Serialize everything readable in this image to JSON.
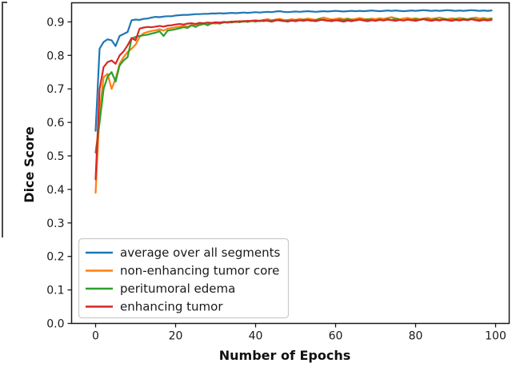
{
  "figure_caption": "",
  "axes": {
    "x_title": "Number of Epochs",
    "y_title": "Dice Score"
  },
  "chart_data": {
    "type": "line",
    "title": "",
    "xlabel": "Number of Epochs",
    "ylabel": "Dice Score",
    "x_start": 0,
    "x_step": 1,
    "n_points": 100,
    "xlim": [
      -6,
      103.4
    ],
    "ylim": [
      0.0,
      0.957
    ],
    "x_ticks": [
      0,
      20,
      40,
      60,
      80,
      100
    ],
    "y_ticks": [
      0.0,
      0.1,
      0.2,
      0.3,
      0.4,
      0.5,
      0.6,
      0.7,
      0.8,
      0.9
    ],
    "grid": false,
    "legend_position": "lower-left",
    "frame_color": "#1a1a1a",
    "legend_border_color": "#cccccc",
    "series": [
      {
        "name": "average over all segments",
        "color": "#1f77b4",
        "values": [
          0.575,
          0.82,
          0.84,
          0.848,
          0.845,
          0.828,
          0.858,
          0.864,
          0.87,
          0.905,
          0.907,
          0.906,
          0.909,
          0.91,
          0.913,
          0.915,
          0.914,
          0.916,
          0.917,
          0.917,
          0.919,
          0.92,
          0.921,
          0.921,
          0.922,
          0.923,
          0.923,
          0.924,
          0.924,
          0.925,
          0.925,
          0.926,
          0.925,
          0.926,
          0.927,
          0.926,
          0.927,
          0.928,
          0.927,
          0.928,
          0.929,
          0.928,
          0.929,
          0.93,
          0.929,
          0.931,
          0.932,
          0.93,
          0.929,
          0.93,
          0.931,
          0.93,
          0.931,
          0.932,
          0.931,
          0.93,
          0.931,
          0.932,
          0.931,
          0.932,
          0.933,
          0.932,
          0.931,
          0.932,
          0.933,
          0.932,
          0.933,
          0.932,
          0.933,
          0.934,
          0.933,
          0.932,
          0.933,
          0.934,
          0.933,
          0.934,
          0.933,
          0.932,
          0.933,
          0.934,
          0.933,
          0.934,
          0.935,
          0.934,
          0.933,
          0.934,
          0.933,
          0.934,
          0.935,
          0.934,
          0.933,
          0.934,
          0.933,
          0.934,
          0.935,
          0.934,
          0.933,
          0.934,
          0.933,
          0.934
        ]
      },
      {
        "name": "non-enhancing tumor core",
        "color": "#ff7f0e",
        "values": [
          0.39,
          0.63,
          0.735,
          0.745,
          0.7,
          0.73,
          0.775,
          0.795,
          0.81,
          0.82,
          0.832,
          0.855,
          0.866,
          0.87,
          0.873,
          0.875,
          0.878,
          0.874,
          0.88,
          0.882,
          0.884,
          0.886,
          0.888,
          0.886,
          0.89,
          0.892,
          0.89,
          0.893,
          0.894,
          0.896,
          0.895,
          0.897,
          0.899,
          0.897,
          0.9,
          0.902,
          0.9,
          0.903,
          0.901,
          0.904,
          0.905,
          0.903,
          0.906,
          0.908,
          0.905,
          0.907,
          0.909,
          0.906,
          0.905,
          0.908,
          0.906,
          0.909,
          0.907,
          0.91,
          0.908,
          0.906,
          0.91,
          0.913,
          0.91,
          0.907,
          0.909,
          0.911,
          0.908,
          0.91,
          0.907,
          0.909,
          0.912,
          0.909,
          0.907,
          0.91,
          0.908,
          0.911,
          0.909,
          0.912,
          0.914,
          0.911,
          0.908,
          0.91,
          0.912,
          0.909,
          0.911,
          0.908,
          0.91,
          0.912,
          0.909,
          0.911,
          0.913,
          0.91,
          0.908,
          0.911,
          0.909,
          0.912,
          0.91,
          0.908,
          0.911,
          0.913,
          0.91,
          0.912,
          0.909,
          0.911
        ]
      },
      {
        "name": "peritumoral edema",
        "color": "#2ca02c",
        "values": [
          0.51,
          0.6,
          0.7,
          0.737,
          0.75,
          0.722,
          0.77,
          0.785,
          0.795,
          0.85,
          0.855,
          0.858,
          0.86,
          0.862,
          0.865,
          0.868,
          0.872,
          0.858,
          0.874,
          0.876,
          0.878,
          0.881,
          0.884,
          0.882,
          0.89,
          0.885,
          0.892,
          0.895,
          0.89,
          0.896,
          0.897,
          0.895,
          0.898,
          0.9,
          0.898,
          0.901,
          0.899,
          0.902,
          0.9,
          0.903,
          0.901,
          0.904,
          0.902,
          0.905,
          0.903,
          0.906,
          0.904,
          0.902,
          0.905,
          0.903,
          0.906,
          0.904,
          0.907,
          0.905,
          0.903,
          0.906,
          0.908,
          0.905,
          0.903,
          0.906,
          0.904,
          0.907,
          0.905,
          0.908,
          0.906,
          0.904,
          0.907,
          0.905,
          0.908,
          0.906,
          0.904,
          0.907,
          0.905,
          0.908,
          0.906,
          0.909,
          0.906,
          0.904,
          0.907,
          0.905,
          0.908,
          0.906,
          0.909,
          0.907,
          0.905,
          0.908,
          0.906,
          0.909,
          0.907,
          0.905,
          0.908,
          0.906,
          0.909,
          0.907,
          0.91,
          0.907,
          0.905,
          0.908,
          0.906,
          0.909
        ]
      },
      {
        "name": "enhancing tumor",
        "color": "#d62728",
        "values": [
          0.43,
          0.7,
          0.765,
          0.78,
          0.785,
          0.775,
          0.8,
          0.812,
          0.83,
          0.852,
          0.845,
          0.88,
          0.883,
          0.885,
          0.884,
          0.886,
          0.888,
          0.886,
          0.889,
          0.89,
          0.892,
          0.894,
          0.892,
          0.895,
          0.896,
          0.894,
          0.897,
          0.896,
          0.898,
          0.897,
          0.899,
          0.898,
          0.9,
          0.899,
          0.901,
          0.9,
          0.902,
          0.901,
          0.903,
          0.902,
          0.904,
          0.902,
          0.905,
          0.903,
          0.901,
          0.904,
          0.906,
          0.903,
          0.901,
          0.904,
          0.902,
          0.905,
          0.903,
          0.906,
          0.904,
          0.902,
          0.905,
          0.907,
          0.904,
          0.902,
          0.905,
          0.903,
          0.901,
          0.904,
          0.902,
          0.905,
          0.907,
          0.904,
          0.902,
          0.905,
          0.903,
          0.906,
          0.904,
          0.907,
          0.905,
          0.903,
          0.906,
          0.904,
          0.907,
          0.905,
          0.903,
          0.906,
          0.908,
          0.905,
          0.903,
          0.906,
          0.904,
          0.907,
          0.905,
          0.903,
          0.906,
          0.904,
          0.907,
          0.905,
          0.908,
          0.905,
          0.903,
          0.906,
          0.904,
          0.906
        ]
      }
    ]
  }
}
